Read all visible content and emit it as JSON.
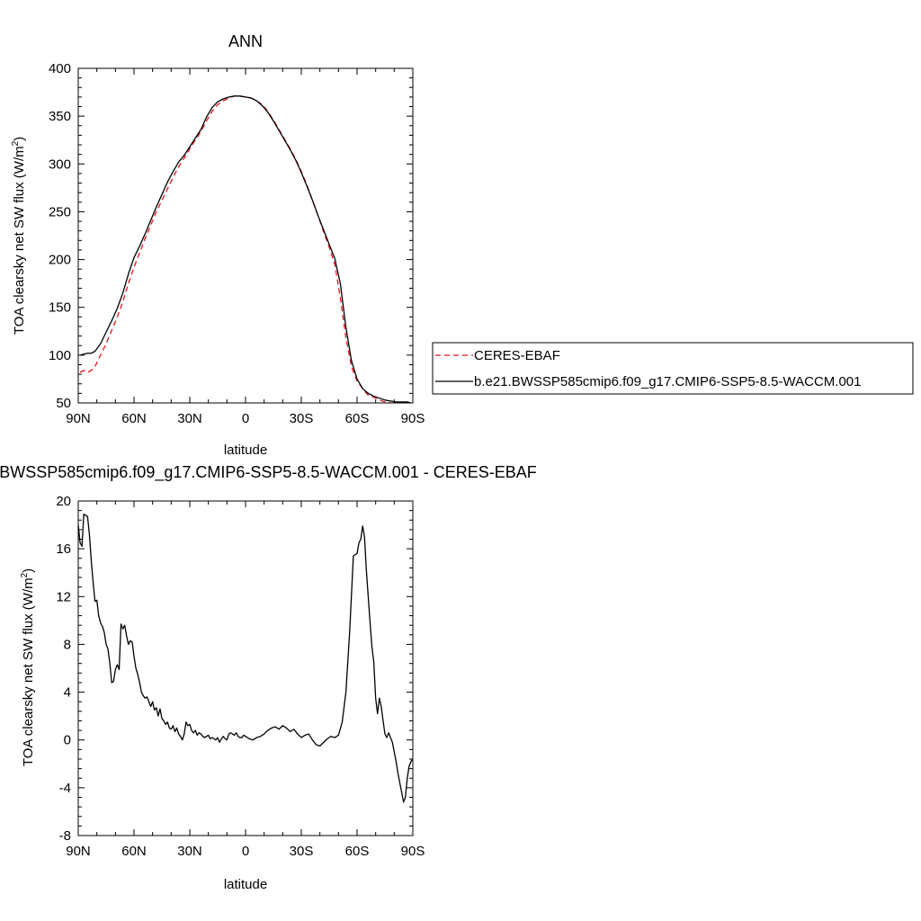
{
  "chart_data": [
    {
      "type": "line",
      "title": "ANN",
      "xlabel": "latitude",
      "ylabel_main": "TOA clearsky net SW flux (W/m",
      "ylabel_sup": "2",
      "ylabel_close": ")",
      "xlim": [
        90,
        -90
      ],
      "ylim": [
        50,
        400
      ],
      "x_ticks": [
        {
          "value": 90,
          "label": "90N"
        },
        {
          "value": 60,
          "label": "60N"
        },
        {
          "value": 30,
          "label": "30N"
        },
        {
          "value": 0,
          "label": "0"
        },
        {
          "value": -30,
          "label": "30S"
        },
        {
          "value": -60,
          "label": "60S"
        },
        {
          "value": -90,
          "label": "90S"
        }
      ],
      "y_ticks": [
        50,
        100,
        150,
        200,
        250,
        300,
        350,
        400
      ],
      "legend": "outside-right",
      "series": [
        {
          "name": "CERES-EBAF",
          "color": "#e8141c",
          "dash": "dashed",
          "x": [
            89,
            87,
            85,
            83,
            81,
            78,
            75,
            72,
            69,
            66,
            63,
            60,
            57,
            54,
            51,
            48,
            45,
            42,
            39,
            36,
            33,
            30,
            27,
            24,
            21,
            18,
            15,
            12,
            9,
            6,
            3,
            0,
            -3,
            -6,
            -9,
            -12,
            -15,
            -18,
            -21,
            -24,
            -27,
            -30,
            -33,
            -36,
            -39,
            -42,
            -45,
            -48,
            -51,
            -54,
            -57,
            -60,
            -63,
            -66,
            -69,
            -72,
            -75,
            -78,
            -81,
            -84,
            -87,
            -89
          ],
          "y": [
            82,
            84,
            82,
            84,
            88,
            100,
            112,
            126,
            140,
            156,
            175,
            192,
            207,
            222,
            236,
            250,
            262,
            274,
            286,
            297,
            306,
            316,
            325,
            334,
            345,
            355,
            362,
            366,
            369,
            371,
            371,
            370,
            369,
            366,
            362,
            355,
            346,
            336,
            326,
            316,
            305,
            292,
            278,
            262,
            246,
            229,
            213,
            195,
            160,
            118,
            88,
            73,
            65,
            58,
            56,
            53,
            51,
            50,
            50,
            50,
            50,
            50
          ]
        },
        {
          "name": "b.e21.BWSSP585cmip6.f09_g17.CMIP6-SSP5-8.5-WACCM.001",
          "color": "#000000",
          "dash": "solid",
          "x": [
            89,
            87,
            85,
            83,
            81,
            78,
            75,
            72,
            69,
            66,
            63,
            60,
            57,
            54,
            51,
            48,
            45,
            42,
            39,
            36,
            33,
            30,
            27,
            24,
            21,
            18,
            15,
            12,
            9,
            6,
            3,
            0,
            -3,
            -6,
            -9,
            -12,
            -15,
            -18,
            -21,
            -24,
            -27,
            -30,
            -33,
            -36,
            -39,
            -42,
            -45,
            -48,
            -51,
            -54,
            -57,
            -60,
            -63,
            -66,
            -69,
            -72,
            -75,
            -78,
            -81,
            -84,
            -87,
            -89
          ],
          "y": [
            100,
            101,
            102,
            102,
            104,
            112,
            124,
            136,
            149,
            165,
            185,
            202,
            214,
            227,
            241,
            255,
            268,
            281,
            292,
            302,
            309,
            318,
            327,
            336,
            349,
            359,
            365,
            368,
            370,
            371,
            371,
            370,
            369,
            366,
            361,
            354,
            345,
            335,
            325,
            315,
            304,
            291,
            277,
            262,
            246,
            231,
            216,
            201,
            175,
            129,
            94,
            75,
            65,
            60,
            57,
            55,
            53,
            52,
            51,
            51,
            51,
            50
          ]
        }
      ]
    },
    {
      "type": "line",
      "title": "b.e21.BWSSP585cmip6.f09_g17.CMIP6-SSP5-8.5-WACCM.001 - CERES-EBAF",
      "xlabel": "latitude",
      "ylabel_main": "TOA clearsky net SW flux (W/m",
      "ylabel_sup": "2",
      "ylabel_close": ")",
      "xlim": [
        90,
        -90
      ],
      "ylim": [
        -8,
        20
      ],
      "x_ticks": [
        {
          "value": 90,
          "label": "90N"
        },
        {
          "value": 60,
          "label": "60N"
        },
        {
          "value": 30,
          "label": "30N"
        },
        {
          "value": 0,
          "label": "0"
        },
        {
          "value": -30,
          "label": "30S"
        },
        {
          "value": -60,
          "label": "60S"
        },
        {
          "value": -90,
          "label": "90S"
        }
      ],
      "y_ticks": [
        -8,
        -4,
        0,
        4,
        8,
        12,
        16,
        20
      ],
      "series": [
        {
          "name": "",
          "color": "#000000",
          "dash": "solid",
          "x": [
            90,
            89,
            88,
            87,
            86,
            85,
            84,
            83,
            82,
            81,
            80,
            79,
            78,
            77,
            76,
            75,
            74,
            73,
            72,
            71,
            70,
            69,
            68,
            67,
            66,
            65,
            64,
            63,
            62,
            61,
            60,
            59,
            58,
            57,
            56,
            55,
            54,
            53,
            52,
            51,
            50,
            49,
            48,
            47,
            46,
            45,
            44,
            43,
            42,
            41,
            40,
            39,
            38,
            37,
            36,
            35,
            34,
            33,
            32,
            31,
            30,
            29,
            28,
            27,
            26,
            25,
            24,
            23,
            22,
            21,
            20,
            19,
            18,
            17,
            16,
            15,
            14,
            13,
            12,
            11,
            10,
            9,
            8,
            7,
            6,
            5,
            4,
            3,
            2,
            1,
            0,
            -2,
            -4,
            -6,
            -8,
            -10,
            -12,
            -14,
            -16,
            -18,
            -20,
            -22,
            -24,
            -26,
            -28,
            -30,
            -32,
            -34,
            -36,
            -38,
            -40,
            -42,
            -44,
            -46,
            -48,
            -50,
            -52,
            -54,
            -56,
            -58,
            -60,
            -61,
            -62,
            -63,
            -64,
            -65,
            -66,
            -67,
            -68,
            -69,
            -70,
            -71,
            -72,
            -73,
            -74,
            -75,
            -76,
            -77,
            -78,
            -79,
            -80,
            -81,
            -82,
            -83,
            -84,
            -85,
            -86,
            -87,
            -88,
            -89,
            -90
          ],
          "y": [
            18.0,
            16.5,
            16.2,
            18.9,
            18.8,
            18.7,
            17.2,
            15.0,
            13.2,
            11.6,
            11.7,
            10.4,
            9.8,
            9.5,
            9.0,
            8.0,
            7.6,
            6.4,
            4.8,
            4.9,
            5.9,
            6.3,
            5.9,
            9.7,
            9.3,
            9.6,
            8.7,
            8.0,
            8.3,
            8.2,
            7.0,
            6.0,
            5.5,
            4.8,
            4.0,
            3.7,
            3.5,
            3.6,
            3.2,
            2.8,
            3.2,
            2.5,
            2.7,
            2.0,
            2.6,
            1.8,
            1.6,
            1.3,
            1.5,
            1.0,
            0.9,
            1.2,
            0.7,
            1.0,
            0.5,
            0.3,
            0.0,
            0.5,
            1.5,
            1.2,
            1.3,
            0.8,
            0.6,
            0.8,
            0.4,
            0.6,
            0.5,
            0.3,
            0.2,
            0.3,
            0.4,
            0.1,
            0.2,
            0.1,
            0.0,
            0.2,
            -0.2,
            0.1,
            0.3,
            0.1,
            0.0,
            0.5,
            0.6,
            0.5,
            0.4,
            0.6,
            0.3,
            0.2,
            0.2,
            0.4,
            0.3,
            0.1,
            0.0,
            0.2,
            0.3,
            0.5,
            0.8,
            1.0,
            1.1,
            0.9,
            1.2,
            1.0,
            0.7,
            0.9,
            0.5,
            0.2,
            0.4,
            0.5,
            0.0,
            -0.4,
            -0.5,
            -0.2,
            0.1,
            0.3,
            0.2,
            0.4,
            1.5,
            4.0,
            9.0,
            15.4,
            15.6,
            16.5,
            16.8,
            17.9,
            17.0,
            14.2,
            12.0,
            9.8,
            7.8,
            6.5,
            3.5,
            2.2,
            3.5,
            2.8,
            1.6,
            0.5,
            0.2,
            0.6,
            0.2,
            -0.2,
            -1.0,
            -1.8,
            -2.8,
            -3.6,
            -4.4,
            -5.2,
            -4.8,
            -3.2,
            -2.2,
            -1.8,
            -1.6
          ]
        }
      ]
    }
  ]
}
